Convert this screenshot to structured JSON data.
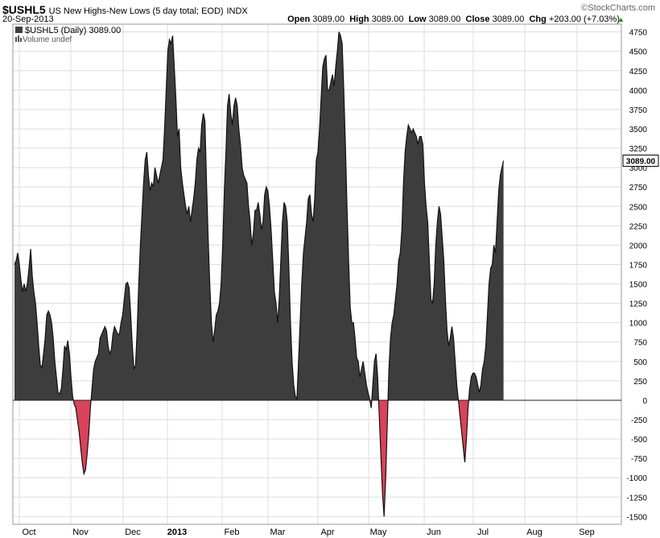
{
  "header": {
    "symbol": "$USHL5",
    "description": "US New Highs-New Lows (5 day total; EOD)",
    "exchange": "INDX",
    "date": "20-Sep-2013",
    "brand": "©StockCharts.com",
    "open_label": "Open",
    "open_value": "3089.00",
    "high_label": "High",
    "high_value": "3089.00",
    "low_label": "Low",
    "low_value": "3089.00",
    "close_label": "Close",
    "close_value": "3089.00",
    "chg_label": "Chg",
    "chg_value": "+203.00 (+7.03%)",
    "up_arrow": "▲"
  },
  "legend": {
    "series_label": "$USHL5 (Daily) 3089.00",
    "volume_label": "Volume undef"
  },
  "colors": {
    "positive_fill": "#3d3d3d",
    "negative_fill": "#d9435a",
    "grid": "#dddddd",
    "price_box": "#000000",
    "up_green": "#1a9a1a"
  },
  "chart_data": {
    "type": "area",
    "last_value": 3089,
    "last_value_label": "3089.00",
    "ylim": [
      -1600,
      4850
    ],
    "y_ticks": [
      -1500,
      -1250,
      -1000,
      -750,
      -500,
      -250,
      0,
      250,
      500,
      750,
      1000,
      1250,
      1500,
      1750,
      2000,
      2250,
      2500,
      2750,
      3000,
      3250,
      3500,
      3750,
      4000,
      4250,
      4500,
      4750
    ],
    "y_tick_labels": [
      "-1500",
      "-1250",
      "-1000",
      "-750",
      "-500",
      "-250",
      "0",
      "250",
      "500",
      "750",
      "1000",
      "1250",
      "1500",
      "1750",
      "2000",
      "2250",
      "2500",
      "2750",
      "3000",
      "3250",
      "3500",
      "3750",
      "4000",
      "4250",
      "4500",
      "4750"
    ],
    "x_labels": [
      {
        "label": "Oct",
        "x": 24
      },
      {
        "label": "Nov",
        "x": 88
      },
      {
        "label": "Dec",
        "x": 153
      },
      {
        "label": "2013",
        "x": 208,
        "bold": true
      },
      {
        "label": "Feb",
        "x": 276
      },
      {
        "label": "Mar",
        "x": 333
      },
      {
        "label": "Apr",
        "x": 395
      },
      {
        "label": "May",
        "x": 458
      },
      {
        "label": "Jun",
        "x": 527
      },
      {
        "label": "Jul",
        "x": 588
      },
      {
        "label": "Aug",
        "x": 652
      },
      {
        "label": "Sep",
        "x": 717
      }
    ],
    "x_range": [
      0,
      750
    ],
    "points": [
      [
        0,
        1750
      ],
      [
        2,
        1800
      ],
      [
        4,
        1900
      ],
      [
        6,
        1750
      ],
      [
        8,
        1550
      ],
      [
        10,
        1400
      ],
      [
        12,
        1500
      ],
      [
        14,
        1400
      ],
      [
        16,
        1500
      ],
      [
        18,
        1700
      ],
      [
        20,
        1950
      ],
      [
        22,
        1600
      ],
      [
        24,
        1400
      ],
      [
        26,
        1250
      ],
      [
        28,
        1000
      ],
      [
        30,
        700
      ],
      [
        32,
        450
      ],
      [
        34,
        420
      ],
      [
        36,
        600
      ],
      [
        38,
        800
      ],
      [
        40,
        1100
      ],
      [
        42,
        1150
      ],
      [
        44,
        1100
      ],
      [
        46,
        1000
      ],
      [
        48,
        800
      ],
      [
        50,
        500
      ],
      [
        52,
        300
      ],
      [
        54,
        100
      ],
      [
        56,
        80
      ],
      [
        58,
        150
      ],
      [
        60,
        400
      ],
      [
        62,
        700
      ],
      [
        64,
        650
      ],
      [
        66,
        770
      ],
      [
        68,
        600
      ],
      [
        70,
        300
      ],
      [
        72,
        50
      ],
      [
        74,
        -50
      ],
      [
        76,
        -100
      ],
      [
        78,
        -250
      ],
      [
        80,
        -400
      ],
      [
        82,
        -600
      ],
      [
        84,
        -800
      ],
      [
        86,
        -950
      ],
      [
        88,
        -900
      ],
      [
        90,
        -700
      ],
      [
        92,
        -450
      ],
      [
        94,
        -100
      ],
      [
        96,
        150
      ],
      [
        98,
        400
      ],
      [
        100,
        500
      ],
      [
        102,
        550
      ],
      [
        104,
        600
      ],
      [
        106,
        800
      ],
      [
        108,
        850
      ],
      [
        110,
        900
      ],
      [
        112,
        950
      ],
      [
        114,
        900
      ],
      [
        116,
        700
      ],
      [
        118,
        600
      ],
      [
        120,
        650
      ],
      [
        122,
        850
      ],
      [
        124,
        950
      ],
      [
        126,
        900
      ],
      [
        128,
        850
      ],
      [
        130,
        850
      ],
      [
        132,
        1000
      ],
      [
        134,
        1100
      ],
      [
        136,
        1300
      ],
      [
        138,
        1500
      ],
      [
        140,
        1520
      ],
      [
        142,
        1450
      ],
      [
        144,
        1100
      ],
      [
        146,
        700
      ],
      [
        148,
        400
      ],
      [
        150,
        450
      ],
      [
        152,
        900
      ],
      [
        154,
        1500
      ],
      [
        156,
        2000
      ],
      [
        158,
        2400
      ],
      [
        160,
        2800
      ],
      [
        162,
        3100
      ],
      [
        164,
        3200
      ],
      [
        166,
        2900
      ],
      [
        168,
        2700
      ],
      [
        170,
        2800
      ],
      [
        172,
        2750
      ],
      [
        174,
        3000
      ],
      [
        176,
        2900
      ],
      [
        178,
        2800
      ],
      [
        180,
        2900
      ],
      [
        182,
        3000
      ],
      [
        184,
        3100
      ],
      [
        186,
        3500
      ],
      [
        188,
        4000
      ],
      [
        190,
        4500
      ],
      [
        192,
        4650
      ],
      [
        194,
        4600
      ],
      [
        196,
        4700
      ],
      [
        198,
        4300
      ],
      [
        200,
        3900
      ],
      [
        202,
        3400
      ],
      [
        204,
        3500
      ],
      [
        206,
        3000
      ],
      [
        208,
        2800
      ],
      [
        210,
        2650
      ],
      [
        212,
        2500
      ],
      [
        214,
        2400
      ],
      [
        216,
        2500
      ],
      [
        218,
        2300
      ],
      [
        220,
        2450
      ],
      [
        222,
        2600
      ],
      [
        224,
        2800
      ],
      [
        226,
        3100
      ],
      [
        228,
        3250
      ],
      [
        230,
        3200
      ],
      [
        232,
        3550
      ],
      [
        234,
        3700
      ],
      [
        236,
        3600
      ],
      [
        238,
        2800
      ],
      [
        240,
        2100
      ],
      [
        242,
        1500
      ],
      [
        244,
        1000
      ],
      [
        246,
        750
      ],
      [
        248,
        900
      ],
      [
        250,
        1100
      ],
      [
        252,
        1150
      ],
      [
        254,
        1250
      ],
      [
        256,
        1500
      ],
      [
        258,
        2000
      ],
      [
        260,
        2700
      ],
      [
        262,
        3200
      ],
      [
        264,
        3800
      ],
      [
        266,
        3950
      ],
      [
        268,
        3700
      ],
      [
        270,
        3550
      ],
      [
        272,
        3800
      ],
      [
        274,
        3900
      ],
      [
        276,
        3800
      ],
      [
        278,
        3500
      ],
      [
        280,
        3300
      ],
      [
        282,
        3000
      ],
      [
        284,
        2900
      ],
      [
        286,
        2850
      ],
      [
        288,
        2800
      ],
      [
        290,
        2500
      ],
      [
        292,
        2300
      ],
      [
        294,
        2000
      ],
      [
        296,
        2150
      ],
      [
        298,
        2450
      ],
      [
        300,
        2450
      ],
      [
        302,
        2550
      ],
      [
        304,
        2400
      ],
      [
        306,
        2200
      ],
      [
        308,
        2300
      ],
      [
        310,
        2650
      ],
      [
        312,
        2750
      ],
      [
        314,
        2700
      ],
      [
        316,
        2500
      ],
      [
        318,
        2200
      ],
      [
        320,
        1800
      ],
      [
        322,
        1400
      ],
      [
        324,
        1250
      ],
      [
        326,
        1000
      ],
      [
        328,
        1300
      ],
      [
        330,
        1800
      ],
      [
        332,
        2300
      ],
      [
        334,
        2550
      ],
      [
        336,
        2500
      ],
      [
        338,
        2300
      ],
      [
        340,
        1700
      ],
      [
        342,
        1000
      ],
      [
        344,
        500
      ],
      [
        346,
        200
      ],
      [
        348,
        50
      ],
      [
        350,
        20
      ],
      [
        352,
        500
      ],
      [
        354,
        1000
      ],
      [
        356,
        1500
      ],
      [
        358,
        1900
      ],
      [
        360,
        2100
      ],
      [
        362,
        2300
      ],
      [
        364,
        2600
      ],
      [
        366,
        2650
      ],
      [
        368,
        2400
      ],
      [
        370,
        2300
      ],
      [
        372,
        2600
      ],
      [
        374,
        3100
      ],
      [
        376,
        3200
      ],
      [
        378,
        3500
      ],
      [
        380,
        3900
      ],
      [
        382,
        4300
      ],
      [
        384,
        4400
      ],
      [
        386,
        4450
      ],
      [
        388,
        4000
      ],
      [
        390,
        4000
      ],
      [
        392,
        4100
      ],
      [
        394,
        4200
      ],
      [
        396,
        4050
      ],
      [
        398,
        4300
      ],
      [
        400,
        4500
      ],
      [
        402,
        4750
      ],
      [
        404,
        4700
      ],
      [
        406,
        4600
      ],
      [
        408,
        4000
      ],
      [
        410,
        3300
      ],
      [
        412,
        2500
      ],
      [
        414,
        1800
      ],
      [
        416,
        1200
      ],
      [
        418,
        1000
      ],
      [
        420,
        1000
      ],
      [
        422,
        800
      ],
      [
        424,
        550
      ],
      [
        426,
        500
      ],
      [
        428,
        300
      ],
      [
        430,
        400
      ],
      [
        432,
        500
      ],
      [
        434,
        350
      ],
      [
        436,
        200
      ],
      [
        438,
        100
      ],
      [
        440,
        20
      ],
      [
        442,
        -100
      ],
      [
        444,
        200
      ],
      [
        446,
        500
      ],
      [
        448,
        600
      ],
      [
        450,
        300
      ],
      [
        452,
        -200
      ],
      [
        454,
        -700
      ],
      [
        456,
        -1200
      ],
      [
        458,
        -1500
      ],
      [
        460,
        -1000
      ],
      [
        462,
        -300
      ],
      [
        464,
        400
      ],
      [
        466,
        800
      ],
      [
        468,
        1000
      ],
      [
        470,
        1100
      ],
      [
        472,
        1300
      ],
      [
        474,
        1500
      ],
      [
        476,
        1800
      ],
      [
        478,
        1900
      ],
      [
        480,
        2200
      ],
      [
        482,
        2800
      ],
      [
        484,
        3200
      ],
      [
        486,
        3400
      ],
      [
        488,
        3550
      ],
      [
        490,
        3500
      ],
      [
        492,
        3450
      ],
      [
        494,
        3500
      ],
      [
        496,
        3450
      ],
      [
        498,
        3400
      ],
      [
        500,
        3300
      ],
      [
        502,
        3400
      ],
      [
        504,
        3400
      ],
      [
        506,
        3300
      ],
      [
        508,
        2800
      ],
      [
        510,
        2500
      ],
      [
        512,
        2300
      ],
      [
        514,
        1800
      ],
      [
        516,
        1300
      ],
      [
        518,
        1250
      ],
      [
        520,
        1500
      ],
      [
        522,
        2000
      ],
      [
        524,
        2300
      ],
      [
        526,
        2500
      ],
      [
        528,
        2400
      ],
      [
        530,
        2100
      ],
      [
        532,
        1800
      ],
      [
        534,
        1300
      ],
      [
        536,
        900
      ],
      [
        538,
        700
      ],
      [
        540,
        800
      ],
      [
        542,
        950
      ],
      [
        544,
        800
      ],
      [
        546,
        500
      ],
      [
        548,
        200
      ],
      [
        550,
        0
      ],
      [
        552,
        -200
      ],
      [
        554,
        -400
      ],
      [
        556,
        -600
      ],
      [
        558,
        -800
      ],
      [
        560,
        -500
      ],
      [
        562,
        -100
      ],
      [
        564,
        150
      ],
      [
        566,
        300
      ],
      [
        568,
        350
      ],
      [
        570,
        350
      ],
      [
        572,
        300
      ],
      [
        574,
        200
      ],
      [
        576,
        100
      ],
      [
        578,
        200
      ],
      [
        580,
        400
      ],
      [
        582,
        500
      ],
      [
        584,
        700
      ],
      [
        586,
        1100
      ],
      [
        588,
        1500
      ],
      [
        590,
        1700
      ],
      [
        592,
        1750
      ],
      [
        594,
        2000
      ],
      [
        596,
        1900
      ],
      [
        598,
        2300
      ],
      [
        600,
        2700
      ],
      [
        602,
        2900
      ],
      [
        604,
        3000
      ],
      [
        606,
        3089
      ]
    ]
  }
}
